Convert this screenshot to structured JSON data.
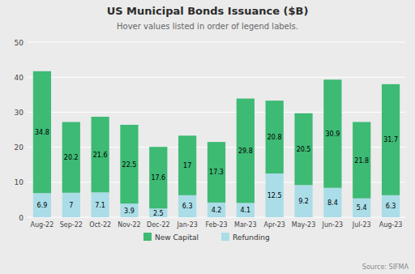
{
  "chart_data": {
    "type": "bar",
    "stacked": true,
    "title": "US Municipal Bonds Issuance ($B)",
    "subtitle": "Hover values listed in order of legend labels.",
    "annotations": [
      "Source: SIFMA"
    ],
    "categories": [
      "Aug-22",
      "Sep-22",
      "Oct-22",
      "Nov-22",
      "Dec-22",
      "Jan-23",
      "Feb-23",
      "Mar-23",
      "Apr-23",
      "May-23",
      "Jun-23",
      "Jul-23",
      "Aug-23"
    ],
    "series": [
      {
        "name": "New Capital",
        "color": "#3dba74",
        "values": [
          34.8,
          20.2,
          21.6,
          22.5,
          17.6,
          17.0,
          17.3,
          29.8,
          20.8,
          20.5,
          30.9,
          21.8,
          31.7
        ]
      },
      {
        "name": "Refunding",
        "color": "#aadde8",
        "values": [
          6.9,
          7.0,
          7.1,
          3.9,
          2.5,
          6.3,
          4.2,
          4.1,
          12.5,
          9.2,
          8.4,
          5.4,
          6.3
        ]
      }
    ],
    "ylim": [
      0,
      50
    ],
    "yticks": [
      0,
      10,
      20,
      30,
      40,
      50
    ],
    "grid": true,
    "data_labels": true,
    "legend": "bottom"
  }
}
